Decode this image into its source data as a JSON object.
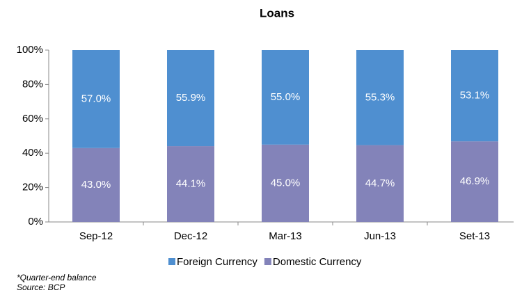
{
  "chart_data": {
    "type": "stacked_bar",
    "title": "Loans",
    "categories": [
      "Sep-12",
      "Dec-12",
      "Mar-13",
      "Jun-13",
      "Set-13"
    ],
    "series": [
      {
        "name": "Foreign Currency",
        "color": "#4f8fd0",
        "values": [
          57.0,
          55.9,
          55.0,
          55.3,
          53.1
        ],
        "value_labels": [
          "57.0%",
          "55.9%",
          "55.0%",
          "55.3%",
          "53.1%"
        ]
      },
      {
        "name": "Domestic Currency",
        "color": "#8383b9",
        "values": [
          43.0,
          44.1,
          45.0,
          44.7,
          46.9
        ],
        "value_labels": [
          "43.0%",
          "44.1%",
          "45.0%",
          "44.7%",
          "46.9%"
        ]
      }
    ],
    "ylim": [
      0,
      100
    ],
    "yticks": [
      {
        "value": 0,
        "label": "0%"
      },
      {
        "value": 20,
        "label": "20%"
      },
      {
        "value": 40,
        "label": "40%"
      },
      {
        "value": 60,
        "label": "60%"
      },
      {
        "value": 80,
        "label": "80%"
      },
      {
        "value": 100,
        "label": "100%"
      }
    ],
    "legend": "bottom",
    "footnotes": [
      "*Quarter-end balance",
      "Source: BCP"
    ]
  }
}
